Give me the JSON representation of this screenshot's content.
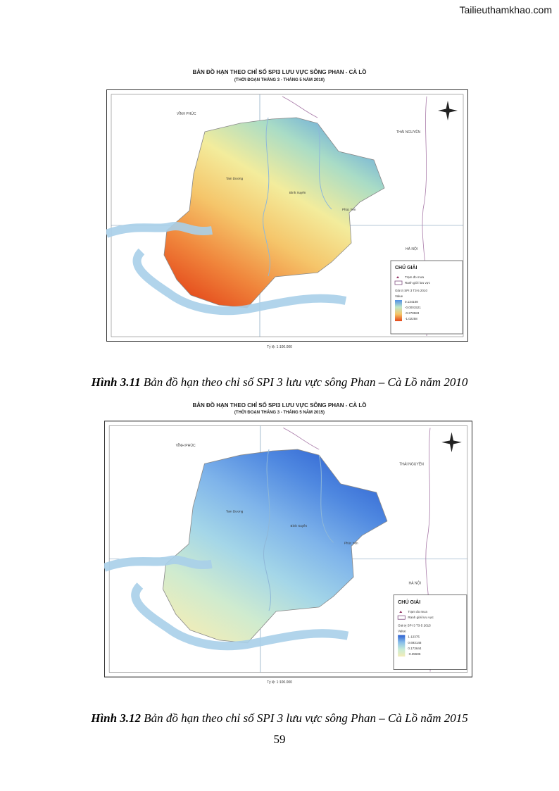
{
  "watermark": "Tailieuthamkhao.com",
  "figures": [
    {
      "title": "BẢN ĐỒ HẠN THEO CHỈ SỐ SPI3 LƯU VỰC SÔNG PHAN - CÀ LỒ",
      "subtitle": "(THỜI ĐOẠN THÁNG 3 - THÁNG 5 NĂM 2010)",
      "places": [
        "VĨNH PHÚC",
        "THÁI NGUYÊN",
        "HÀ NỘI"
      ],
      "towns": [
        "Tam Dương",
        "Bình Xuyên",
        "Phúc Yên"
      ],
      "legend": {
        "title": "CHÚ GIẢI",
        "items": [
          "Trạm đo mưa",
          "Ranh giới lưu vực"
        ],
        "layer": "Giá trị SPI 3 T3-5 2010",
        "field": "Value",
        "values": [
          "0.134108",
          "-0.0001521",
          "-0.278583",
          "-1.02258"
        ]
      },
      "scale": "Tỷ lệ: 1:100.000",
      "caption": {
        "label": "Hình 3.11",
        "text": "Bản đồ hạn theo chỉ số SPI 3 lưu vực sông Phan – Cà Lồ năm 2010"
      }
    },
    {
      "title": "BẢN ĐỒ HẠN THEO CHỈ SỐ SPI3 LƯU VỰC SÔNG PHAN - CÀ LỒ",
      "subtitle": "(THỜI ĐOẠN THÁNG 3 - THÁNG 5 NĂM 2015)",
      "places": [
        "VĨNH PHÚC",
        "THÁI NGUYÊN",
        "HÀ NỘI"
      ],
      "towns": [
        "Tam Dương",
        "Bình Xuyên",
        "Phúc Yên"
      ],
      "legend": {
        "title": "CHÚ GIẢI",
        "items": [
          "Trạm đo mưa",
          "Ranh giới lưu vực"
        ],
        "layer": "Giá trị SPI 3 T3-5 2015",
        "field": "Value",
        "values": [
          "1.12375",
          "0.693148",
          "0.173644",
          "-0.35506"
        ]
      },
      "scale": "Tỷ lệ: 1:100.000",
      "caption": {
        "label": "Hình 3.12",
        "text": "Bản đồ hạn theo chỉ số SPI 3 lưu vực sông Phan – Cà Lồ năm 2015"
      }
    }
  ],
  "page_number": "59"
}
